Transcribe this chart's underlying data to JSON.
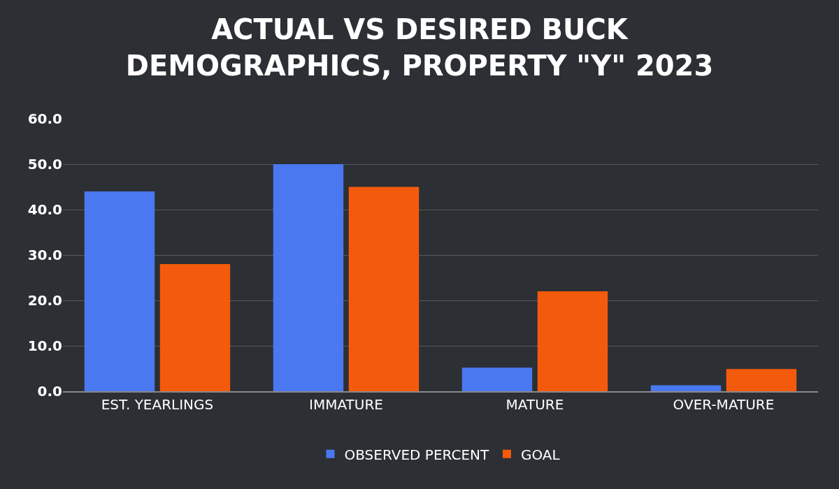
{
  "chart_data": {
    "type": "bar",
    "title": "ACTUAL VS DESIRED BUCK\nDEMOGRAPHICS, PROPERTY \"Y\" 2023",
    "categories": [
      "EST. YEARLINGS",
      "IMMATURE",
      "MATURE",
      "OVER-MATURE"
    ],
    "series": [
      {
        "name": "OBSERVED PERCENT",
        "color": "#4a78f0",
        "values": [
          44,
          50,
          5.2,
          1.3
        ]
      },
      {
        "name": "GOAL",
        "color": "#f45a0c",
        "values": [
          28,
          45,
          22,
          4.9
        ]
      }
    ],
    "ylim": [
      0,
      60
    ],
    "yticks": [
      {
        "value": 0,
        "label": "0.0"
      },
      {
        "value": 10,
        "label": "10.0"
      },
      {
        "value": 20,
        "label": "20.0"
      },
      {
        "value": 30,
        "label": "30.0"
      },
      {
        "value": 40,
        "label": "40.0"
      },
      {
        "value": 50,
        "label": "50.0"
      },
      {
        "value": 60,
        "label": "60.0"
      }
    ],
    "grid": "y",
    "legend": "bottom"
  }
}
